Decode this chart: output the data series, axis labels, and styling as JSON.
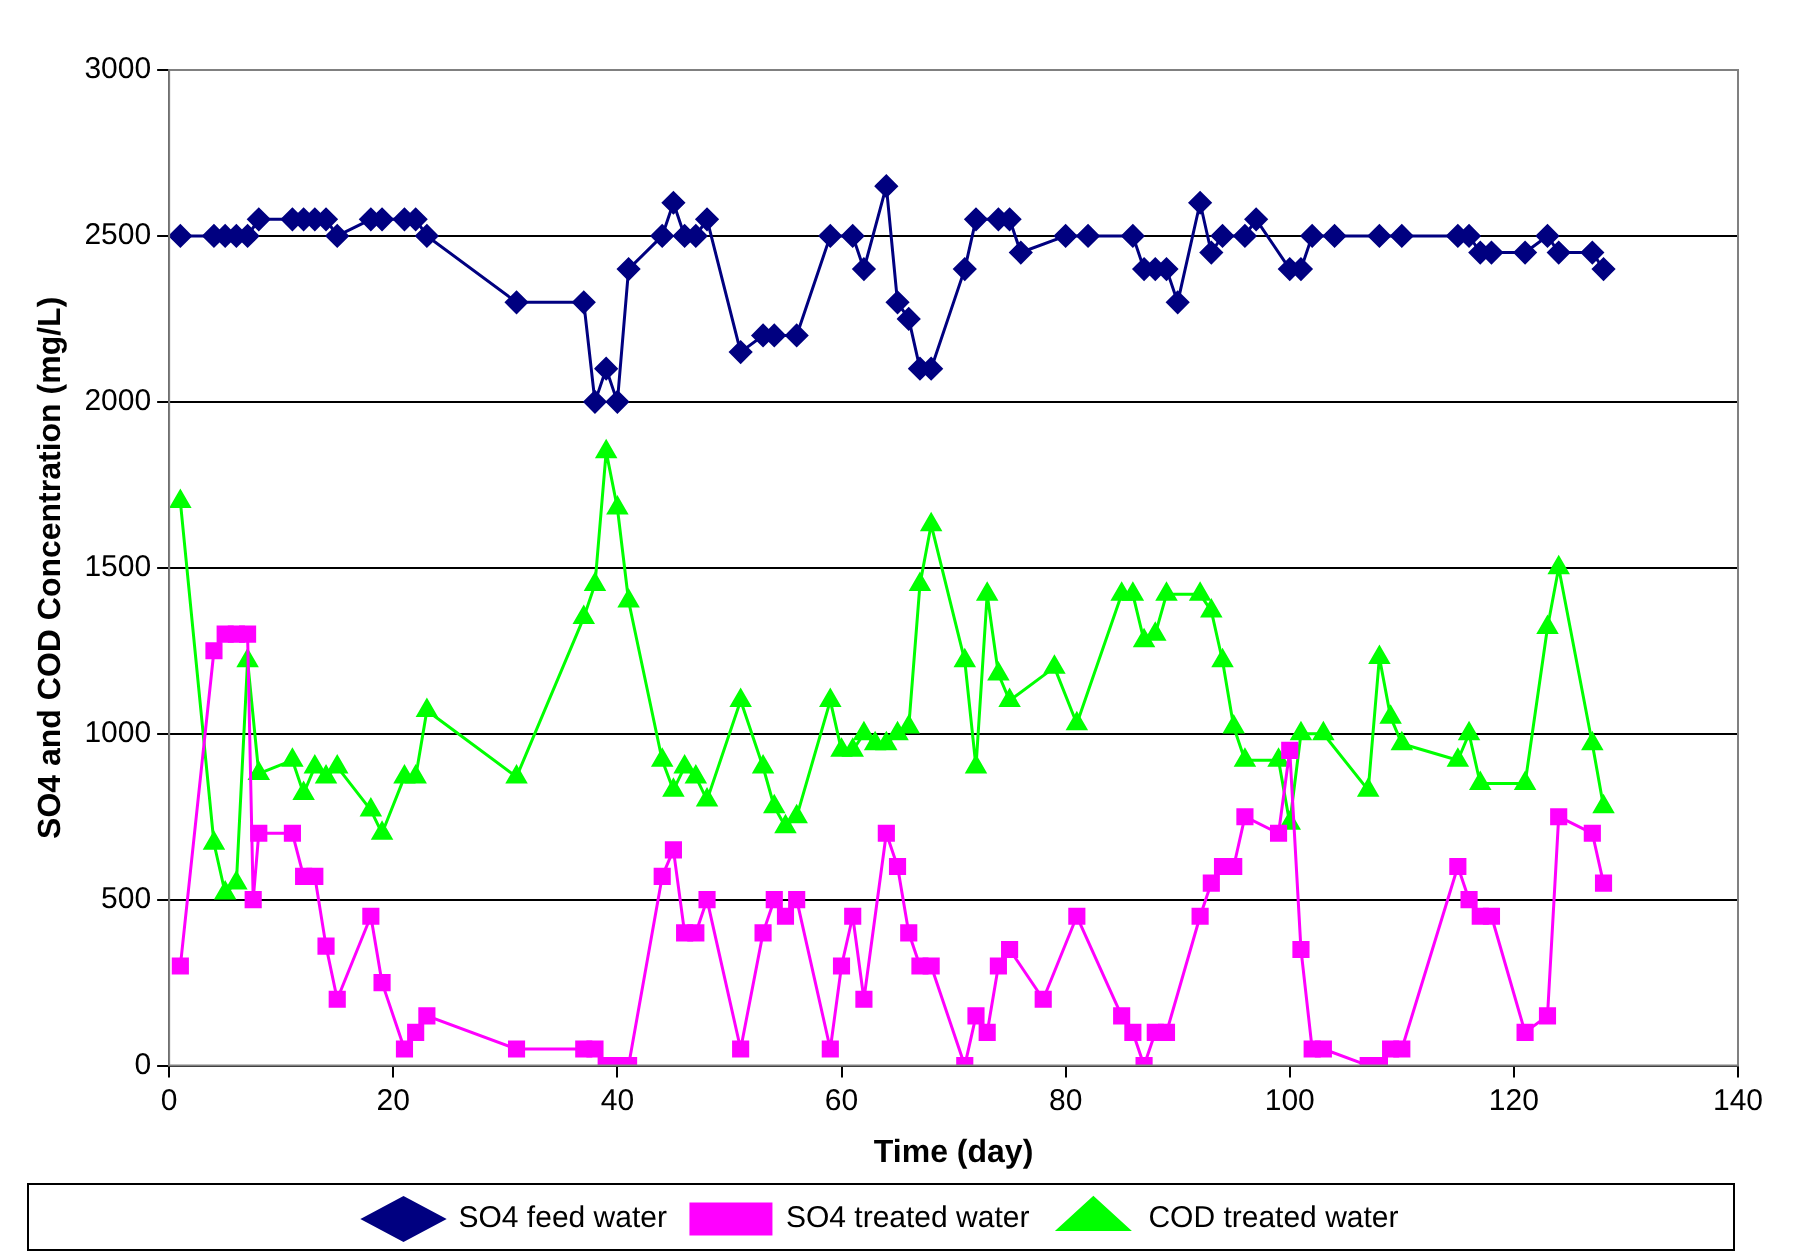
{
  "chart_data": {
    "type": "line",
    "xlabel": "Time (day)",
    "ylabel": "SO4 and COD Concentration (mg/L)",
    "xlim": [
      0,
      140
    ],
    "xticks": [
      0,
      20,
      40,
      60,
      80,
      100,
      120,
      140
    ],
    "ylim": [
      0,
      3000
    ],
    "yticks": [
      0,
      500,
      1000,
      1500,
      2000,
      2500,
      3000
    ],
    "grid": "y",
    "legend": "bottom",
    "series": [
      {
        "name": "SO4 feed water",
        "color": "#000080",
        "marker": "diamond",
        "x": [
          1,
          4,
          5,
          6,
          7,
          8,
          11,
          12,
          13,
          14,
          15,
          18,
          19,
          21,
          22,
          23,
          31,
          37,
          38,
          39,
          40,
          41,
          44,
          45,
          46,
          47,
          48,
          51,
          53,
          54,
          56,
          59,
          61,
          62,
          64,
          65,
          66,
          67,
          68,
          71,
          72,
          74,
          75,
          76,
          80,
          82,
          86,
          87,
          88,
          89,
          90,
          92,
          93,
          94,
          96,
          97,
          100,
          101,
          102,
          104,
          108,
          110,
          115,
          116,
          117,
          118,
          121,
          123,
          124,
          127,
          128
        ],
        "values": [
          2500,
          2500,
          2500,
          2500,
          2500,
          2550,
          2550,
          2550,
          2550,
          2550,
          2500,
          2550,
          2550,
          2550,
          2550,
          2500,
          2300,
          2300,
          2000,
          2100,
          2000,
          2400,
          2500,
          2600,
          2500,
          2500,
          2550,
          2150,
          2200,
          2200,
          2200,
          2500,
          2500,
          2400,
          2650,
          2300,
          2250,
          2100,
          2100,
          2400,
          2550,
          2550,
          2550,
          2450,
          2500,
          2500,
          2500,
          2400,
          2400,
          2400,
          2300,
          2600,
          2450,
          2500,
          2500,
          2550,
          2400,
          2400,
          2500,
          2500,
          2500,
          2500,
          2500,
          2500,
          2450,
          2450,
          2450,
          2500,
          2450,
          2450,
          2400
        ]
      },
      {
        "name": "SO4 treated water",
        "color": "#ff00ff",
        "marker": "square",
        "x": [
          1,
          4,
          5,
          6,
          7,
          7.5,
          8,
          11,
          12,
          13,
          14,
          15,
          18,
          19,
          21,
          22,
          23,
          31,
          37,
          38,
          39,
          40,
          41,
          44,
          45,
          46,
          47,
          48,
          51,
          53,
          54,
          55,
          56,
          59,
          60,
          61,
          62,
          64,
          65,
          66,
          67,
          68,
          71,
          72,
          73,
          74,
          75,
          78,
          81,
          85,
          86,
          87,
          88,
          89,
          92,
          93,
          94,
          95,
          96,
          99,
          100,
          101,
          102,
          103,
          107,
          108,
          109,
          110,
          115,
          116,
          117,
          118,
          121,
          123,
          124,
          127,
          128
        ],
        "values": [
          300,
          1250,
          1300,
          1300,
          1300,
          500,
          700,
          700,
          570,
          570,
          360,
          200,
          450,
          250,
          50,
          100,
          150,
          50,
          50,
          50,
          0,
          0,
          0,
          570,
          650,
          400,
          400,
          500,
          50,
          400,
          500,
          450,
          500,
          50,
          300,
          450,
          200,
          700,
          600,
          400,
          300,
          300,
          0,
          150,
          100,
          300,
          350,
          200,
          450,
          150,
          100,
          0,
          100,
          100,
          450,
          550,
          600,
          600,
          750,
          700,
          950,
          350,
          50,
          50,
          0,
          0,
          50,
          50,
          600,
          500,
          450,
          450,
          100,
          150,
          750,
          700,
          550
        ]
      },
      {
        "name": "COD treated water",
        "color": "#00ff00",
        "marker": "triangle",
        "x": [
          1,
          4,
          5,
          6,
          7,
          8,
          11,
          12,
          13,
          14,
          15,
          18,
          19,
          21,
          22,
          23,
          31,
          37,
          38,
          39,
          40,
          41,
          44,
          45,
          46,
          47,
          48,
          51,
          53,
          54,
          55,
          56,
          59,
          60,
          61,
          62,
          63,
          64,
          65,
          66,
          67,
          68,
          71,
          72,
          73,
          74,
          75,
          79,
          81,
          85,
          86,
          87,
          88,
          89,
          92,
          93,
          94,
          95,
          96,
          99,
          100,
          101,
          103,
          107,
          108,
          109,
          110,
          115,
          116,
          117,
          121,
          123,
          124,
          127,
          128
        ],
        "values": [
          1700,
          670,
          520,
          550,
          1220,
          880,
          920,
          820,
          900,
          870,
          900,
          770,
          700,
          870,
          870,
          1070,
          870,
          1350,
          1450,
          1850,
          1680,
          1400,
          920,
          830,
          900,
          870,
          800,
          1100,
          900,
          780,
          720,
          750,
          1100,
          950,
          950,
          1000,
          970,
          970,
          1000,
          1020,
          1450,
          1630,
          1220,
          900,
          1420,
          1180,
          1100,
          1200,
          1030,
          1420,
          1420,
          1280,
          1300,
          1420,
          1420,
          1370,
          1220,
          1020,
          920,
          920,
          730,
          1000,
          1000,
          830,
          1230,
          1050,
          970,
          920,
          1000,
          850,
          850,
          1320,
          1500,
          970,
          780
        ]
      }
    ]
  }
}
